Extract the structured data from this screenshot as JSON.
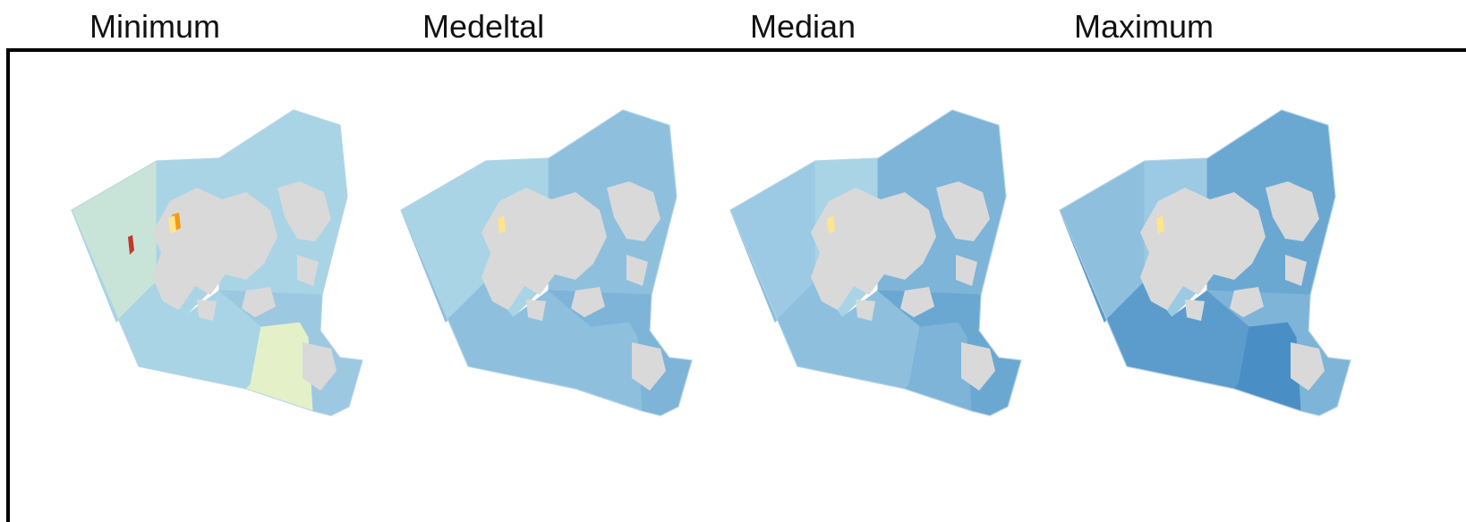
{
  "panels": [
    {
      "title": "Minimum",
      "colors": {
        "west": "#c8e4d8",
        "central": "#a8d4e6",
        "northeast": "#a8d4e6",
        "southwest": "#a8d4e6",
        "southeast": "#e4f0c8",
        "east": "#9cc8e2",
        "land": "#d9d9d9"
      },
      "hotspots": [
        {
          "name": "hotspot-red",
          "color": "#c0392b"
        },
        {
          "name": "hotspot-orange",
          "color": "#f39c12"
        },
        {
          "name": "hotspot-yellow",
          "color": "#fde68a"
        }
      ]
    },
    {
      "title": "Medeltal",
      "colors": {
        "west": "#a8d4e6",
        "central": "#a8d4e6",
        "northeast": "#8ec0de",
        "southwest": "#8ec0de",
        "southeast": "#8ec0de",
        "east": "#7db4d8",
        "land": "#d9d9d9"
      },
      "hotspots": [
        {
          "name": "hotspot-yellow",
          "color": "#fde68a"
        }
      ]
    },
    {
      "title": "Median",
      "colors": {
        "west": "#9ccae4",
        "central": "#a8d4e6",
        "northeast": "#7db4d8",
        "southwest": "#8ec0de",
        "southeast": "#7db4d8",
        "east": "#6aa8d2",
        "land": "#d9d9d9"
      },
      "hotspots": [
        {
          "name": "hotspot-yellow",
          "color": "#fde68a"
        }
      ]
    },
    {
      "title": "Maximum",
      "colors": {
        "west": "#8ec0de",
        "central": "#9ccae4",
        "northeast": "#6aa8d2",
        "southwest": "#5c9ccc",
        "southeast": "#4a8ec6",
        "east": "#7db4d8",
        "land": "#d9d9d9"
      },
      "hotspots": [
        {
          "name": "hotspot-yellow",
          "color": "#fde68a"
        }
      ]
    }
  ]
}
